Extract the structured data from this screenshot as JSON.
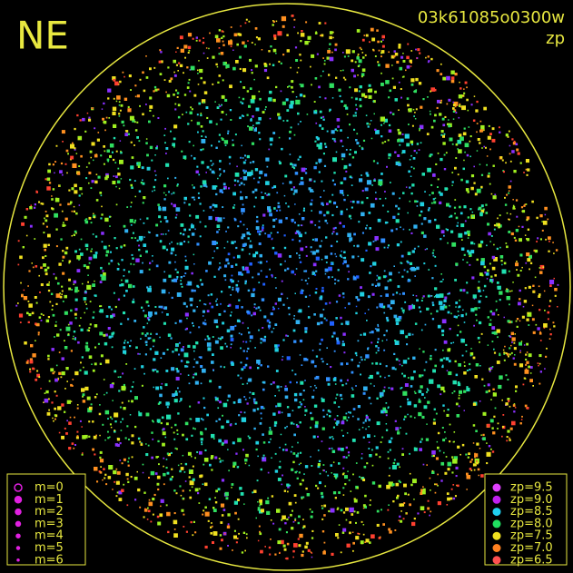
{
  "header": {
    "direction": "NE",
    "frame_id": "03k61085o0300w",
    "quantity": "zp"
  },
  "magnitude_legend": {
    "items": [
      {
        "label": "m=0"
      },
      {
        "label": "m=1"
      },
      {
        "label": "m=2"
      },
      {
        "label": "m=3"
      },
      {
        "label": "m=4"
      },
      {
        "label": "m=5"
      },
      {
        "label": "m=6"
      }
    ]
  },
  "zp_legend": {
    "items": [
      {
        "label": "zp=9.5",
        "color": "#e040ff"
      },
      {
        "label": "zp=9.0",
        "color": "#c020f0"
      },
      {
        "label": "zp=8.5",
        "color": "#20d0f0"
      },
      {
        "label": "zp=8.0",
        "color": "#20e060"
      },
      {
        "label": "zp=7.5",
        "color": "#f0e020"
      },
      {
        "label": "zp=7.0",
        "color": "#ff8020"
      },
      {
        "label": "zp=6.5",
        "color": "#ff5050"
      }
    ]
  }
}
